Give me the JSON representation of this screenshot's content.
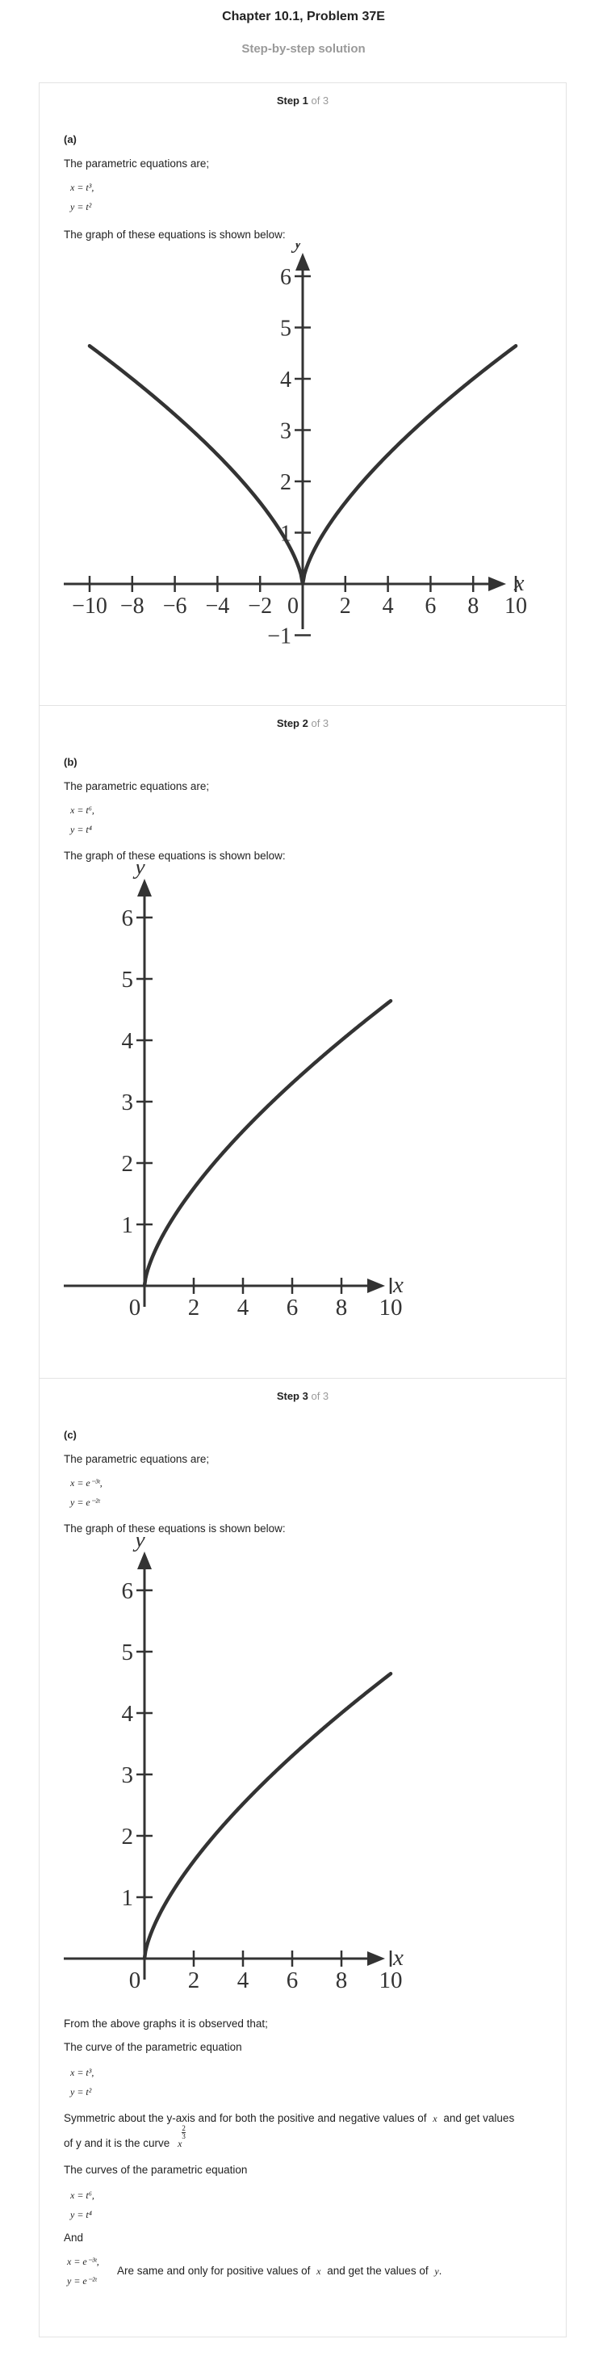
{
  "header": {
    "title": "Chapter 10.1, Problem 37E",
    "subtitle": "Step-by-step solution"
  },
  "steps": [
    {
      "step_word": "Step 1",
      "of_text": "of 3",
      "part": "(a)",
      "intro": "The parametric equations are;",
      "eq1": "x = t³,",
      "eq2": "y = t²",
      "graph_intro": "The graph of these equations is shown below:"
    },
    {
      "step_word": "Step 2",
      "of_text": "of 3",
      "part": "(b)",
      "intro": "The parametric equations are;",
      "eq1": "x = t⁶,",
      "eq2": "y = t⁴",
      "graph_intro": "The graph of these equations is shown below:"
    },
    {
      "step_word": "Step 3",
      "of_text": "of 3",
      "part": "(c)",
      "intro": "The parametric equations are;",
      "eq1": "x = e⁻³ᵗ,",
      "eq2": "y = e⁻²ᵗ",
      "graph_intro": "The graph of these equations is shown below:"
    }
  ],
  "conclusion": {
    "line1": "From the above graphs it is observed that;",
    "line2": "The curve of the parametric equation",
    "eqA1": "x = t³,",
    "eqA2": "y = t²",
    "sym_a": "Symmetric about the y-axis and for both the positive and negative values of",
    "sym_x": "x",
    "sym_b": "and get values",
    "sym_c": "of y and it is the curve",
    "curve_base": "x",
    "curve_num": "2",
    "curve_den": "3",
    "line4": "The curves of the parametric equation",
    "eqB1": "x = t⁶,",
    "eqB2": "y = t⁴",
    "and_word": "And",
    "eqC1": "x = e⁻³ᵗ,",
    "eqC2": "y = e⁻²ᵗ",
    "same_a": "Are same and only for positive values of",
    "same_x": "x",
    "same_b": "and get the values of",
    "same_y": "y",
    "same_dot": "."
  },
  "chart_data": [
    {
      "type": "line",
      "xlabel": "x",
      "ylabel": "y",
      "xlim": [
        -10,
        10
      ],
      "ylim": [
        -1,
        6
      ],
      "x_ticks": [
        "−10",
        "−8",
        "−6",
        "−4",
        "−2",
        "0",
        "2",
        "4",
        "6",
        "8",
        "10"
      ],
      "y_ticks": [
        "−1",
        "1",
        "2",
        "3",
        "4",
        "5",
        "6"
      ],
      "series": [
        {
          "x": [
            -10,
            -8,
            -6,
            -4,
            -2,
            -1,
            -0.5,
            0,
            0.5,
            1,
            2,
            4,
            6,
            8,
            10
          ],
          "y": [
            4.64,
            4.0,
            3.3,
            2.52,
            1.59,
            1.0,
            0.63,
            0,
            0.63,
            1.0,
            1.59,
            2.52,
            3.3,
            4.0,
            4.64
          ]
        }
      ]
    },
    {
      "type": "line",
      "xlabel": "x",
      "ylabel": "y",
      "xlim": [
        0,
        10
      ],
      "ylim": [
        0,
        6
      ],
      "x_ticks": [
        "0",
        "2",
        "4",
        "6",
        "8",
        "10"
      ],
      "y_ticks": [
        "1",
        "2",
        "3",
        "4",
        "5",
        "6"
      ],
      "series": [
        {
          "x": [
            0,
            0.5,
            1,
            2,
            3,
            4,
            6,
            8,
            10
          ],
          "y": [
            0,
            0.63,
            1.0,
            1.59,
            2.08,
            2.52,
            3.3,
            4.0,
            4.64
          ]
        }
      ]
    },
    {
      "type": "line",
      "xlabel": "x",
      "ylabel": "y",
      "xlim": [
        0,
        10
      ],
      "ylim": [
        0,
        6
      ],
      "x_ticks": [
        "0",
        "2",
        "4",
        "6",
        "8",
        "10"
      ],
      "y_ticks": [
        "1",
        "2",
        "3",
        "4",
        "5",
        "6"
      ],
      "series": [
        {
          "x": [
            0,
            0.5,
            1,
            2,
            3,
            4,
            6,
            8,
            10
          ],
          "y": [
            0,
            0.63,
            1.0,
            1.59,
            2.08,
            2.52,
            3.3,
            4.0,
            4.64
          ]
        }
      ]
    }
  ]
}
